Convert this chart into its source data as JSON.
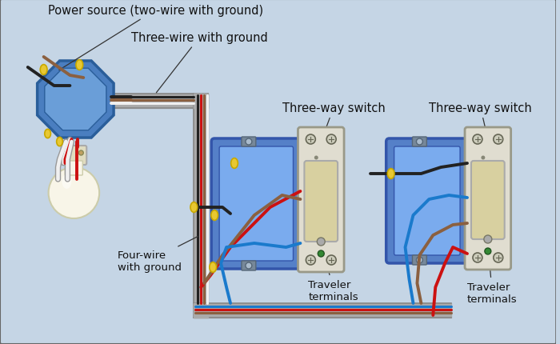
{
  "bg_color": "#c5d5e5",
  "labels": {
    "power_source": "Power source (two-wire with ground)",
    "three_wire": "Three-wire with ground",
    "four_wire": "Four-wire\nwith ground",
    "switch1_label": "Three-way switch",
    "switch2_label": "Three-way switch",
    "traveler1": "Traveler\nterminals",
    "traveler2": "Traveler\nterminals"
  },
  "wire_colors": {
    "black": "#222222",
    "white": "#f0f0f0",
    "white_outline": "#999999",
    "red": "#cc1111",
    "blue": "#1a7acc",
    "brown": "#8B5E3C",
    "gray_bare": "#aaaaaa",
    "yellow_cap": "#e8c832",
    "yellow_cap_edge": "#c8a800"
  },
  "box_colors": {
    "oct_face": "#4a7ec0",
    "oct_inner": "#6a9ed8",
    "oct_edge": "#2a5e9a",
    "conduit": "#aaaaaa",
    "conduit_edge": "#888888",
    "sw_box_face": "#5580c8",
    "sw_box_inner": "#7aabee",
    "sw_box_edge": "#3355aa",
    "sw_plate_face": "#e0ddd0",
    "sw_plate_edge": "#aaaaaa",
    "sw_paddle": "#d8d0a0",
    "sw_screw": "#ccccbb",
    "bulb_face": "#f8f5e8",
    "socket_face": "#e0dcc0",
    "socket_screws": "#c0a060"
  }
}
